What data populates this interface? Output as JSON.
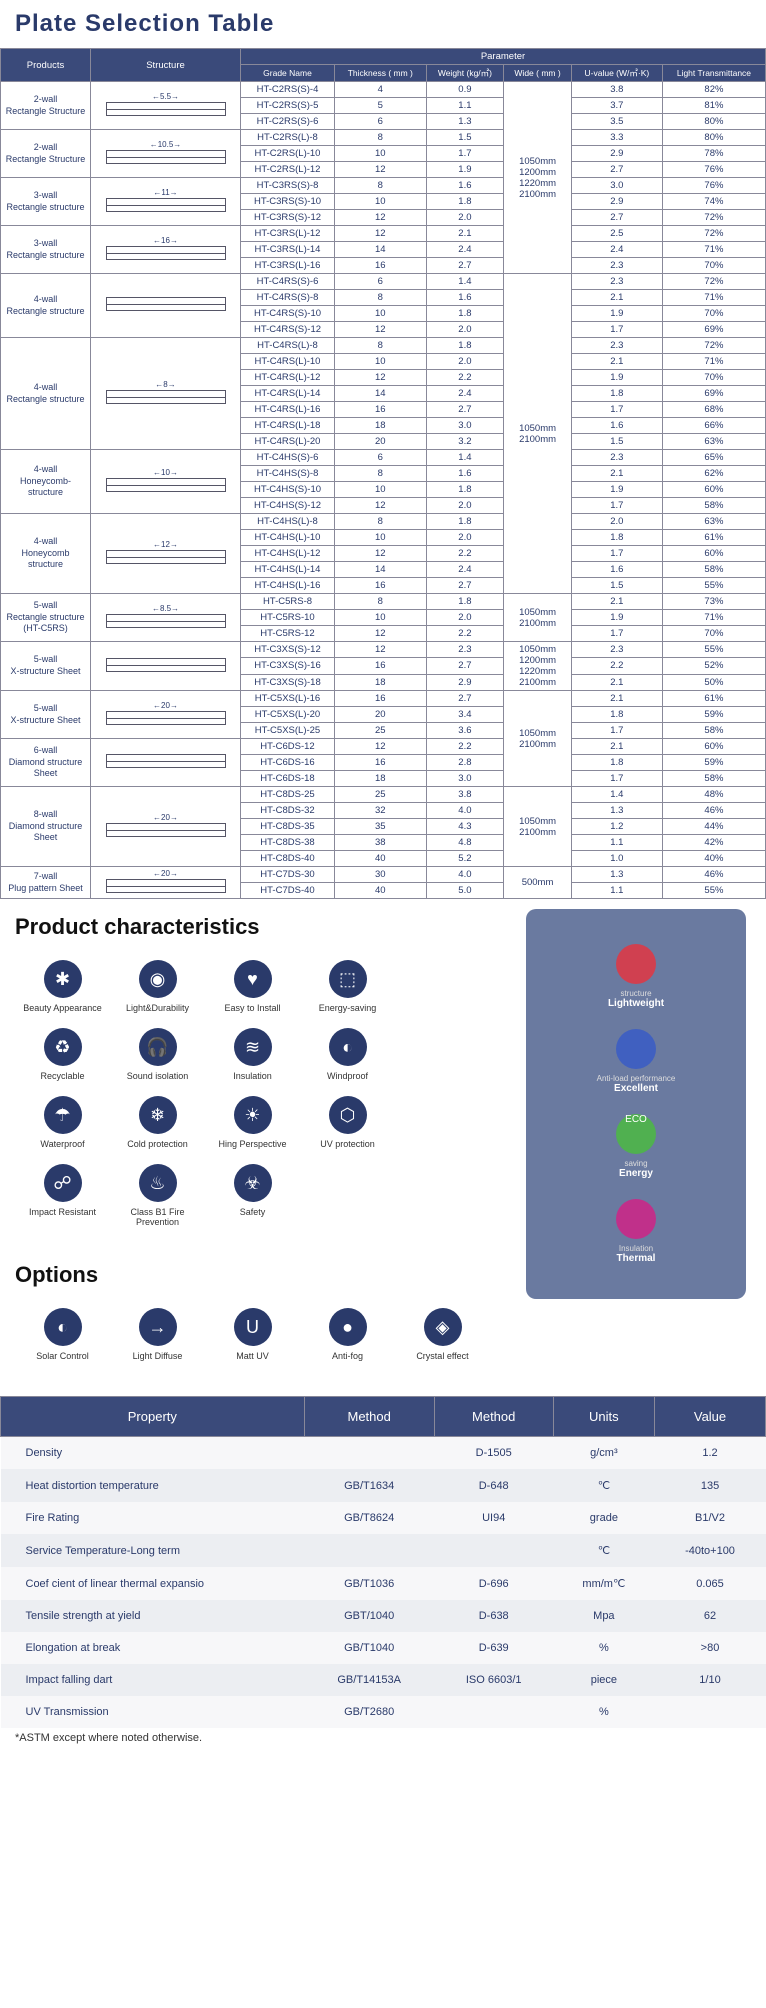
{
  "title": "Plate Selection Table",
  "table": {
    "head1": [
      "Products",
      "Structure",
      "Parameter"
    ],
    "head2": [
      "Grade Name",
      "Thickness\n( mm )",
      "Weight\n(kg/㎡)",
      "Wide\n( mm )",
      "U-value\n(W/㎡·K)",
      "Light Transmittance"
    ],
    "groups": [
      {
        "prod": "2-wall\nRectangle Structure",
        "dim": "5.5",
        "wide": "1050mm\n1200mm\n1220mm\n2100mm",
        "rows": [
          [
            "HT-C2RS(S)-4",
            "4",
            "0.9",
            "3.8",
            "82%"
          ],
          [
            "HT-C2RS(S)-5",
            "5",
            "1.1",
            "3.7",
            "81%"
          ],
          [
            "HT-C2RS(S)-6",
            "6",
            "1.3",
            "3.5",
            "80%"
          ]
        ]
      },
      {
        "prod": "2-wall\nRectangle Structure",
        "dim": "10.5",
        "wide": "",
        "rows": [
          [
            "HT-C2RS(L)-8",
            "8",
            "1.5",
            "3.3",
            "80%"
          ],
          [
            "HT-C2RS(L)-10",
            "10",
            "1.7",
            "2.9",
            "78%"
          ],
          [
            "HT-C2RS(L)-12",
            "12",
            "1.9",
            "2.7",
            "76%"
          ]
        ]
      },
      {
        "prod": "3-wall\nRectangle structure",
        "dim": "11",
        "wide": "",
        "rows": [
          [
            "HT-C3RS(S)-8",
            "8",
            "1.6",
            "3.0",
            "76%"
          ],
          [
            "HT-C3RS(S)-10",
            "10",
            "1.8",
            "2.9",
            "74%"
          ],
          [
            "HT-C3RS(S)-12",
            "12",
            "2.0",
            "2.7",
            "72%"
          ]
        ]
      },
      {
        "prod": "3-wall\nRectangle structure",
        "dim": "16",
        "wide": "",
        "rows": [
          [
            "HT-C3RS(L)-12",
            "12",
            "2.1",
            "2.5",
            "72%"
          ],
          [
            "HT-C3RS(L)-14",
            "14",
            "2.4",
            "2.4",
            "71%"
          ],
          [
            "HT-C3RS(L)-16",
            "16",
            "2.7",
            "2.3",
            "70%"
          ]
        ]
      },
      {
        "prod": "4-wall\nRectangle structure",
        "dim": "",
        "wide": "1050mm\n2100mm",
        "rows": [
          [
            "HT-C4RS(S)-6",
            "6",
            "1.4",
            "2.3",
            "72%"
          ],
          [
            "HT-C4RS(S)-8",
            "8",
            "1.6",
            "2.1",
            "71%"
          ],
          [
            "HT-C4RS(S)-10",
            "10",
            "1.8",
            "1.9",
            "70%"
          ],
          [
            "HT-C4RS(S)-12",
            "12",
            "2.0",
            "1.7",
            "69%"
          ]
        ]
      },
      {
        "prod": "4-wall\nRectangle structure",
        "dim": "8",
        "wide": "",
        "rows": [
          [
            "HT-C4RS(L)-8",
            "8",
            "1.8",
            "2.3",
            "72%"
          ],
          [
            "HT-C4RS(L)-10",
            "10",
            "2.0",
            "2.1",
            "71%"
          ],
          [
            "HT-C4RS(L)-12",
            "12",
            "2.2",
            "1.9",
            "70%"
          ],
          [
            "HT-C4RS(L)-14",
            "14",
            "2.4",
            "1.8",
            "69%"
          ],
          [
            "HT-C4RS(L)-16",
            "16",
            "2.7",
            "1.7",
            "68%"
          ],
          [
            "HT-C4RS(L)-18",
            "18",
            "3.0",
            "1.6",
            "66%"
          ],
          [
            "HT-C4RS(L)-20",
            "20",
            "3.2",
            "1.5",
            "63%"
          ]
        ]
      },
      {
        "prod": "4-wall\nHoneycomb-structure",
        "dim": "10",
        "wide": "",
        "rows": [
          [
            "HT-C4HS(S)-6",
            "6",
            "1.4",
            "2.3",
            "65%"
          ],
          [
            "HT-C4HS(S)-8",
            "8",
            "1.6",
            "2.1",
            "62%"
          ],
          [
            "HT-C4HS(S)-10",
            "10",
            "1.8",
            "1.9",
            "60%"
          ],
          [
            "HT-C4HS(S)-12",
            "12",
            "2.0",
            "1.7",
            "58%"
          ]
        ]
      },
      {
        "prod": "4-wall\nHoneycomb structure",
        "dim": "12",
        "wide": "",
        "rows": [
          [
            "HT-C4HS(L)-8",
            "8",
            "1.8",
            "2.0",
            "63%"
          ],
          [
            "HT-C4HS(L)-10",
            "10",
            "2.0",
            "1.8",
            "61%"
          ],
          [
            "HT-C4HS(L)-12",
            "12",
            "2.2",
            "1.7",
            "60%"
          ],
          [
            "HT-C4HS(L)-14",
            "14",
            "2.4",
            "1.6",
            "58%"
          ],
          [
            "HT-C4HS(L)-16",
            "16",
            "2.7",
            "1.5",
            "55%"
          ]
        ]
      },
      {
        "prod": "5-wall\nRectangle structure\n(HT-C5RS)",
        "dim": "8.5",
        "wide": "1050mm\n2100mm",
        "rows": [
          [
            "HT-C5RS-8",
            "8",
            "1.8",
            "2.1",
            "73%"
          ],
          [
            "HT-C5RS-10",
            "10",
            "2.0",
            "1.9",
            "71%"
          ],
          [
            "HT-C5RS-12",
            "12",
            "2.2",
            "1.7",
            "70%"
          ]
        ]
      },
      {
        "prod": "5-wall\nX-structure Sheet",
        "dim": "",
        "wide": "1050mm\n1200mm\n1220mm\n2100mm",
        "rows": [
          [
            "HT-C3XS(S)-12",
            "12",
            "2.3",
            "2.3",
            "55%"
          ],
          [
            "HT-C3XS(S)-16",
            "16",
            "2.7",
            "2.2",
            "52%"
          ],
          [
            "HT-C3XS(S)-18",
            "18",
            "2.9",
            "2.1",
            "50%"
          ]
        ]
      },
      {
        "prod": "5-wall\nX-structure Sheet",
        "dim": "20",
        "wide": "1050mm\n2100mm",
        "rows": [
          [
            "HT-C5XS(L)-16",
            "16",
            "2.7",
            "2.1",
            "61%"
          ],
          [
            "HT-C5XS(L)-20",
            "20",
            "3.4",
            "1.8",
            "59%"
          ],
          [
            "HT-C5XS(L)-25",
            "25",
            "3.6",
            "1.7",
            "58%"
          ]
        ]
      },
      {
        "prod": "6-wall\nDiamond structure Sheet",
        "dim": "",
        "wide": "",
        "rows": [
          [
            "HT-C6DS-12",
            "12",
            "2.2",
            "2.1",
            "60%"
          ],
          [
            "HT-C6DS-16",
            "16",
            "2.8",
            "1.8",
            "59%"
          ],
          [
            "HT-C6DS-18",
            "18",
            "3.0",
            "1.7",
            "58%"
          ]
        ]
      },
      {
        "prod": "8-wall\nDiamond structure Sheet",
        "dim": "20",
        "wide": "1050mm\n2100mm",
        "rows": [
          [
            "HT-C8DS-25",
            "25",
            "3.8",
            "1.4",
            "48%"
          ],
          [
            "HT-C8DS-32",
            "32",
            "4.0",
            "1.3",
            "46%"
          ],
          [
            "HT-C8DS-35",
            "35",
            "4.3",
            "1.2",
            "44%"
          ],
          [
            "HT-C8DS-38",
            "38",
            "4.8",
            "1.1",
            "42%"
          ],
          [
            "HT-C8DS-40",
            "40",
            "5.2",
            "1.0",
            "40%"
          ]
        ]
      },
      {
        "prod": "7-wall\nPlug pattern Sheet",
        "dim": "20",
        "wide": "500mm",
        "rows": [
          [
            "HT-C7DS-30",
            "30",
            "4.0",
            "1.3",
            "46%"
          ],
          [
            "HT-C7DS-40",
            "40",
            "5.0",
            "1.1",
            "55%"
          ]
        ]
      }
    ]
  },
  "char_title": "Product characteristics",
  "chars": [
    {
      "icon": "✱",
      "label": "Beauty Appearance"
    },
    {
      "icon": "◉",
      "label": "Light&Durability"
    },
    {
      "icon": "♥",
      "label": "Easy to Install"
    },
    {
      "icon": "⬚",
      "label": "Energy-saving"
    },
    {
      "icon": "♻",
      "label": "Recyclable"
    },
    {
      "icon": "🎧",
      "label": "Sound isolation"
    },
    {
      "icon": "≋",
      "label": "Insulation"
    },
    {
      "icon": "◐",
      "label": "Windproof"
    },
    {
      "icon": "☂",
      "label": "Waterproof"
    },
    {
      "icon": "❄",
      "label": "Cold protection"
    },
    {
      "icon": "☀",
      "label": "Hing Perspective"
    },
    {
      "icon": "⬡",
      "label": "UV protection"
    },
    {
      "icon": "☍",
      "label": "Impact Resistant"
    },
    {
      "icon": "♨",
      "label": "Class B1 Fire Prevention"
    },
    {
      "icon": "☣",
      "label": "Safety"
    }
  ],
  "side": [
    {
      "title": "structure",
      "sub": "Lightweight",
      "color": "#d04050"
    },
    {
      "title": "Anti-load performance",
      "sub": "Excellent",
      "color": "#4060c0"
    },
    {
      "title": "saving",
      "sub": "Energy",
      "color": "#50b050",
      "badge": "ECO"
    },
    {
      "title": "Insulation",
      "sub": "Thermal",
      "color": "#c0308a"
    }
  ],
  "options_title": "Options",
  "options": [
    {
      "icon": "◐",
      "label": "Solar Control"
    },
    {
      "icon": "→",
      "label": "Light Diffuse"
    },
    {
      "icon": "U",
      "label": "Matt UV"
    },
    {
      "icon": "●",
      "label": "Anti-fog"
    },
    {
      "icon": "◈",
      "label": "Crystal effect"
    }
  ],
  "prop_head": [
    "Property",
    "Method",
    "Method",
    "Units",
    "Value"
  ],
  "props": [
    [
      "Density",
      "",
      "D-1505",
      "g/cm³",
      "1.2"
    ],
    [
      "Heat distortion temperature",
      "GB/T1634",
      "D-648",
      "℃",
      "135"
    ],
    [
      "Fire Rating",
      "GB/T8624",
      "UI94",
      "grade",
      "B1/V2"
    ],
    [
      "Service Temperature-Long term",
      "",
      "",
      "℃",
      "-40to+100"
    ],
    [
      "Coef cient of linear thermal expansio",
      "GB/T1036",
      "D-696",
      "mm/m℃",
      "0.065"
    ],
    [
      "Tensile strength at yield",
      "GBT/1040",
      "D-638",
      "Mpa",
      "62"
    ],
    [
      "Elongation at break",
      "GB/T1040",
      "D-639",
      "%",
      ">80"
    ],
    [
      "Impact falling dart",
      "GB/T14153A",
      "ISO 6603/1",
      "piece",
      "1/10"
    ],
    [
      "UV Transmission",
      "GB/T2680",
      "",
      "%",
      ""
    ]
  ],
  "note": "*ASTM except where noted otherwise."
}
